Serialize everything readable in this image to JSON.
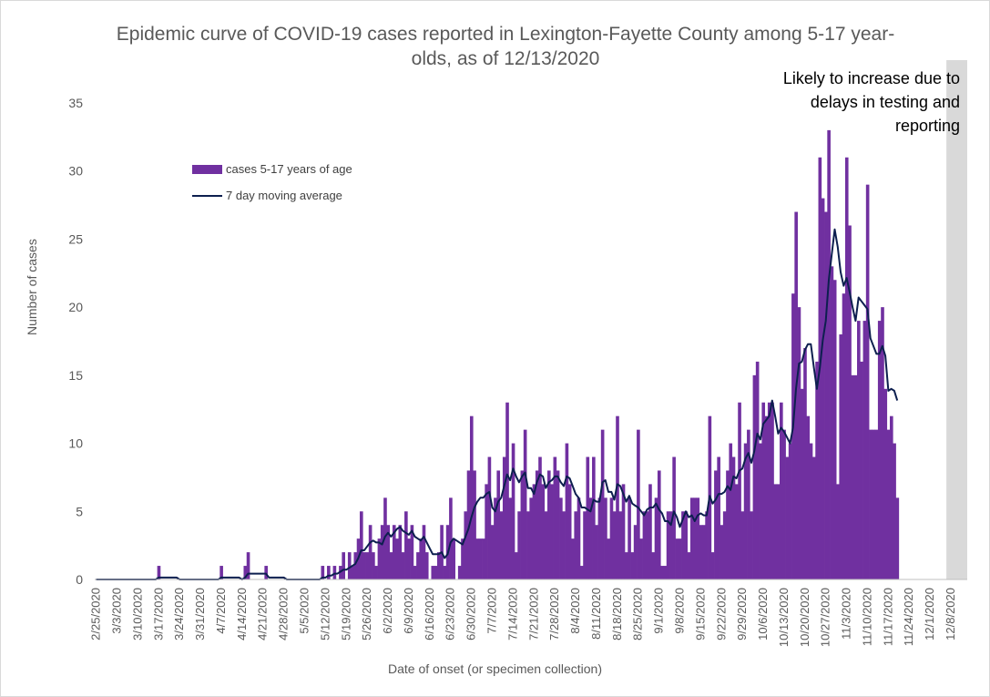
{
  "chart_data": {
    "type": "bar",
    "title_line1": "Epidemic curve of COVID-19 cases reported in Lexington-Fayette County among 5-17 year-",
    "title_line2": "olds, as of 12/13/2020",
    "xlabel": "Date of onset (or specimen collection)",
    "ylabel": "Number of cases",
    "ylim": [
      0,
      35
    ],
    "yticks": [
      "0",
      "5",
      "10",
      "15",
      "20",
      "25",
      "30",
      "35"
    ],
    "x_start": "2/25/2020",
    "x_end": "12/13/2020",
    "xticks": [
      "2/25/2020",
      "3/3/2020",
      "3/10/2020",
      "3/17/2020",
      "3/24/2020",
      "3/31/2020",
      "4/7/2020",
      "4/14/2020",
      "4/21/2020",
      "4/28/2020",
      "5/5/2020",
      "5/12/2020",
      "5/19/2020",
      "5/26/2020",
      "6/2/2020",
      "6/9/2020",
      "6/16/2020",
      "6/23/2020",
      "6/30/2020",
      "7/7/2020",
      "7/14/2020",
      "7/21/2020",
      "7/28/2020",
      "8/4/2020",
      "8/11/2020",
      "8/18/2020",
      "8/25/2020",
      "9/1/2020",
      "9/8/2020",
      "9/15/2020",
      "9/22/2020",
      "9/29/2020",
      "10/6/2020",
      "10/13/2020",
      "10/20/2020",
      "10/27/2020",
      "11/3/2020",
      "11/10/2020",
      "11/17/2020",
      "11/24/2020",
      "12/1/2020",
      "12/8/2020"
    ],
    "series": [
      {
        "name": "cases 5-17 years of age",
        "type": "bar",
        "color": "#7030a0",
        "values": [
          0,
          0,
          0,
          0,
          0,
          0,
          0,
          0,
          0,
          0,
          0,
          0,
          0,
          0,
          0,
          0,
          0,
          0,
          0,
          0,
          0,
          1,
          0,
          0,
          0,
          0,
          0,
          0,
          0,
          0,
          0,
          0,
          0,
          0,
          0,
          0,
          0,
          0,
          0,
          0,
          0,
          0,
          1,
          0,
          0,
          0,
          0,
          0,
          0,
          0,
          1,
          2,
          0,
          0,
          0,
          0,
          0,
          1,
          0,
          0,
          0,
          0,
          0,
          0,
          0,
          0,
          0,
          0,
          0,
          0,
          0,
          0,
          0,
          0,
          0,
          0,
          1,
          0,
          1,
          0,
          1,
          0,
          1,
          2,
          0,
          2,
          1,
          2,
          3,
          5,
          2,
          2,
          4,
          2,
          1,
          3,
          4,
          6,
          4,
          2,
          4,
          3,
          4,
          2,
          5,
          3,
          4,
          1,
          2,
          3,
          4,
          2,
          0,
          1,
          1,
          2,
          4,
          1,
          4,
          6,
          3,
          0,
          1,
          3,
          5,
          8,
          12,
          8,
          3,
          3,
          3,
          7,
          9,
          4,
          6,
          8,
          5,
          9,
          13,
          6,
          10,
          2,
          5,
          8,
          11,
          5,
          6,
          7,
          8,
          9,
          7,
          5,
          8,
          7,
          9,
          8,
          6,
          5,
          10,
          7,
          3,
          5,
          6,
          1,
          5,
          9,
          6,
          9,
          4,
          6,
          11,
          6,
          3,
          6,
          5,
          12,
          5,
          7,
          2,
          6,
          2,
          4,
          11,
          3,
          5,
          5,
          7,
          2,
          6,
          8,
          1,
          1,
          5,
          5,
          9,
          3,
          3,
          5,
          5,
          2,
          6,
          6,
          6,
          4,
          4,
          5,
          12,
          2,
          8,
          9,
          4,
          5,
          8,
          10,
          9,
          7,
          13,
          5,
          10,
          11,
          5,
          15,
          16,
          10,
          13,
          12,
          13,
          13,
          7,
          7,
          13,
          11,
          9,
          10,
          21,
          27,
          20,
          14,
          17,
          12,
          10,
          9,
          16,
          31,
          28,
          27,
          33,
          23,
          22,
          7,
          18,
          21,
          31,
          26,
          15,
          15,
          19,
          16,
          19,
          29,
          11,
          11,
          11,
          19,
          20,
          14,
          11,
          12,
          10,
          6
        ]
      },
      {
        "name": "7 day moving average",
        "type": "line",
        "color": "#0d1f4f"
      }
    ]
  },
  "annotation": {
    "shaded_start": "12/7/2020",
    "shaded_end": "12/13/2020",
    "shade_color": "#d9d9d9",
    "text_lines": [
      "Likely to increase due to",
      "delays in testing and",
      "reporting"
    ]
  }
}
